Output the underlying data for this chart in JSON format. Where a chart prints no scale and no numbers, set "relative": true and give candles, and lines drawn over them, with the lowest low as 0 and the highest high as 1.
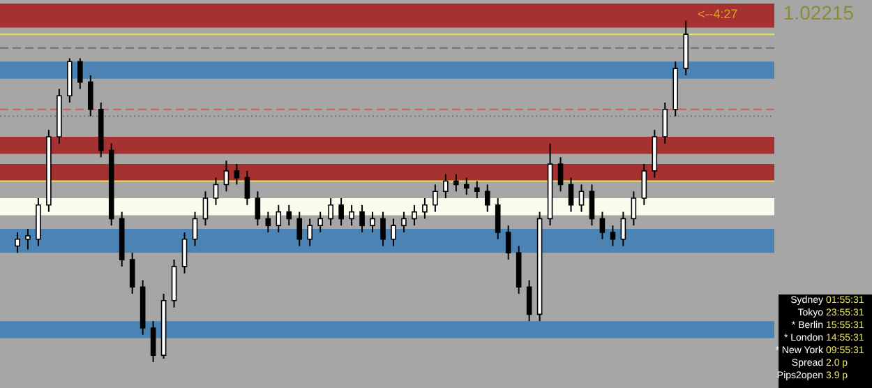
{
  "chart_data": {
    "type": "candlestick",
    "relative": true,
    "color": "#000000",
    "categories": [
      null,
      null,
      null,
      null,
      null,
      null,
      null,
      null,
      null,
      null,
      null,
      null,
      null,
      null,
      null,
      null,
      null,
      null,
      null,
      null,
      null,
      null,
      null,
      null,
      null,
      null,
      null,
      null,
      null,
      null,
      null,
      null,
      null,
      null,
      null,
      null,
      null,
      null,
      null,
      null,
      null,
      null,
      null,
      null,
      null,
      null,
      null,
      null,
      null,
      null,
      null,
      null,
      null,
      null,
      null,
      null,
      null,
      null,
      null,
      null,
      null,
      null,
      null,
      null,
      null
    ],
    "ohlc": [
      [
        0.34,
        0.38,
        0.32,
        0.36
      ],
      [
        0.36,
        0.39,
        0.33,
        0.37
      ],
      [
        0.36,
        0.48,
        0.34,
        0.46
      ],
      [
        0.46,
        0.68,
        0.44,
        0.66
      ],
      [
        0.66,
        0.8,
        0.64,
        0.78
      ],
      [
        0.78,
        0.89,
        0.76,
        0.88
      ],
      [
        0.88,
        0.89,
        0.8,
        0.82
      ],
      [
        0.82,
        0.84,
        0.72,
        0.74
      ],
      [
        0.74,
        0.76,
        0.6,
        0.62
      ],
      [
        0.62,
        0.64,
        0.4,
        0.42
      ],
      [
        0.42,
        0.44,
        0.28,
        0.3
      ],
      [
        0.3,
        0.32,
        0.2,
        0.22
      ],
      [
        0.22,
        0.24,
        0.08,
        0.1
      ],
      [
        0.1,
        0.12,
        0,
        0.02
      ],
      [
        0.02,
        0.2,
        0.01,
        0.18
      ],
      [
        0.18,
        0.3,
        0.16,
        0.28
      ],
      [
        0.28,
        0.38,
        0.26,
        0.36
      ],
      [
        0.36,
        0.44,
        0.34,
        0.42
      ],
      [
        0.42,
        0.5,
        0.4,
        0.48
      ],
      [
        0.48,
        0.54,
        0.46,
        0.52
      ],
      [
        0.52,
        0.59,
        0.5,
        0.56
      ],
      [
        0.56,
        0.58,
        0.52,
        0.54
      ],
      [
        0.54,
        0.56,
        0.46,
        0.48
      ],
      [
        0.48,
        0.5,
        0.4,
        0.42
      ],
      [
        0.42,
        0.44,
        0.38,
        0.4
      ],
      [
        0.4,
        0.46,
        0.38,
        0.44
      ],
      [
        0.44,
        0.46,
        0.4,
        0.42
      ],
      [
        0.42,
        0.44,
        0.34,
        0.36
      ],
      [
        0.36,
        0.42,
        0.34,
        0.4
      ],
      [
        0.4,
        0.44,
        0.38,
        0.42
      ],
      [
        0.42,
        0.48,
        0.4,
        0.46
      ],
      [
        0.46,
        0.48,
        0.4,
        0.42
      ],
      [
        0.42,
        0.46,
        0.4,
        0.44
      ],
      [
        0.44,
        0.46,
        0.38,
        0.4
      ],
      [
        0.4,
        0.44,
        0.38,
        0.42
      ],
      [
        0.42,
        0.44,
        0.34,
        0.36
      ],
      [
        0.36,
        0.42,
        0.34,
        0.4
      ],
      [
        0.4,
        0.44,
        0.38,
        0.42
      ],
      [
        0.42,
        0.46,
        0.4,
        0.44
      ],
      [
        0.44,
        0.48,
        0.42,
        0.46
      ],
      [
        0.46,
        0.52,
        0.44,
        0.5
      ],
      [
        0.5,
        0.55,
        0.48,
        0.53
      ],
      [
        0.53,
        0.55,
        0.5,
        0.52
      ],
      [
        0.52,
        0.54,
        0.49,
        0.51
      ],
      [
        0.51,
        0.53,
        0.48,
        0.5
      ],
      [
        0.5,
        0.52,
        0.44,
        0.46
      ],
      [
        0.46,
        0.48,
        0.36,
        0.38
      ],
      [
        0.38,
        0.4,
        0.3,
        0.32
      ],
      [
        0.32,
        0.34,
        0.2,
        0.22
      ],
      [
        0.22,
        0.24,
        0.12,
        0.14
      ],
      [
        0.14,
        0.44,
        0.12,
        0.42
      ],
      [
        0.42,
        0.64,
        0.4,
        0.58
      ],
      [
        0.58,
        0.6,
        0.5,
        0.52
      ],
      [
        0.52,
        0.54,
        0.44,
        0.46
      ],
      [
        0.46,
        0.52,
        0.44,
        0.5
      ],
      [
        0.5,
        0.52,
        0.4,
        0.42
      ],
      [
        0.42,
        0.44,
        0.36,
        0.38
      ],
      [
        0.38,
        0.4,
        0.34,
        0.36
      ],
      [
        0.36,
        0.44,
        0.34,
        0.42
      ],
      [
        0.42,
        0.5,
        0.4,
        0.48
      ],
      [
        0.48,
        0.58,
        0.46,
        0.56
      ],
      [
        0.56,
        0.68,
        0.54,
        0.66
      ],
      [
        0.66,
        0.76,
        0.64,
        0.74
      ],
      [
        0.74,
        0.88,
        0.72,
        0.86
      ],
      [
        0.86,
        1,
        0.84,
        0.96
      ]
    ],
    "bands": [
      {
        "axis": "y",
        "from": 0.98,
        "to": 1.05,
        "color": "#a52a2a"
      },
      {
        "axis": "y",
        "from": 0.83,
        "to": 0.88,
        "color": "#4682b4"
      },
      {
        "axis": "y",
        "from": 0.61,
        "to": 0.66,
        "color": "#a52a2a"
      },
      {
        "axis": "y",
        "from": 0.53,
        "to": 0.58,
        "color": "#a52a2a"
      },
      {
        "axis": "y",
        "from": 0.43,
        "to": 0.48,
        "color": "#fffff0"
      },
      {
        "axis": "y",
        "from": 0.32,
        "to": 0.39,
        "color": "#4682b4"
      },
      {
        "axis": "y",
        "from": 0.07,
        "to": 0.12,
        "color": "#4682b4"
      }
    ],
    "ref_lines": [
      {
        "axis": "y",
        "value": 0.96,
        "color": "#e6e65a",
        "line_style": "solid"
      },
      {
        "axis": "y",
        "value": 0.92,
        "color": "#707070",
        "line_style": "dashed"
      },
      {
        "axis": "y",
        "value": 0.74,
        "color": "#d06060",
        "line_style": "dashed"
      },
      {
        "axis": "y",
        "value": 0.72,
        "color": "#8a6a6a",
        "line_style": "dotted"
      },
      {
        "axis": "y",
        "value": 0.53,
        "color": "#e6e65a",
        "line_style": "solid"
      }
    ],
    "annotations": [
      "<--4:27",
      "1.02215",
      "Sydney",
      "01:55:31",
      "Tokyo",
      "23:55:31",
      "* Berlin",
      "15:55:31",
      "* London",
      "14:55:31",
      "* New York",
      "09:55:31",
      "Spread",
      "2.0 p",
      "Pips2open",
      "3.9 p"
    ]
  }
}
